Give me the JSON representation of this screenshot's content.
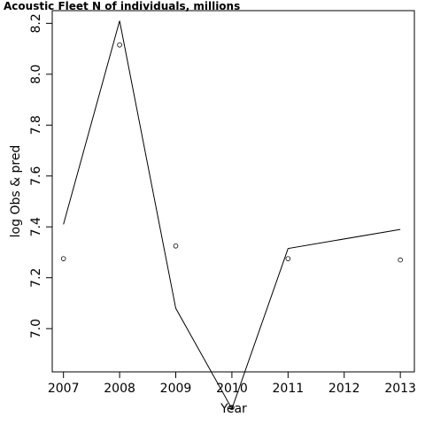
{
  "chart_data": {
    "type": "line",
    "title": "Acoustic Fleet   N of individuals, millions",
    "xlabel": "Year",
    "ylabel": "log Obs & pred",
    "x": [
      2007,
      2008,
      2009,
      2010,
      2011,
      2013
    ],
    "x_ticks": [
      2007,
      2008,
      2009,
      2010,
      2011,
      2012,
      2013
    ],
    "x_tick_labels": [
      "2007",
      "2008",
      "2009",
      "2010",
      "2011",
      "2012",
      "2013"
    ],
    "y_ticks": [
      7.0,
      7.2,
      7.4,
      7.6,
      7.8,
      8.0,
      8.2
    ],
    "y_tick_labels": [
      "7.0",
      "7.2",
      "7.4",
      "7.6",
      "7.8",
      "8.0",
      "8.2"
    ],
    "xlim": [
      2006.8,
      2013.25
    ],
    "ylim": [
      6.83,
      8.25
    ],
    "series": [
      {
        "style": "points",
        "values": [
          7.275,
          8.115,
          7.325,
          6.69,
          7.275,
          7.27
        ]
      },
      {
        "style": "line",
        "values": [
          7.41,
          8.21,
          7.08,
          6.685,
          7.315,
          7.39
        ]
      }
    ],
    "grid": false,
    "legend": "none"
  }
}
